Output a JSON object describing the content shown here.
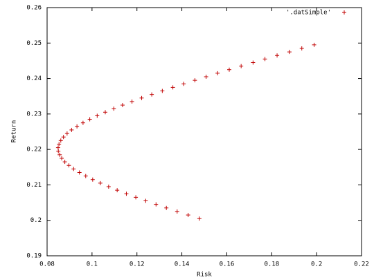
{
  "chart_data": {
    "type": "scatter",
    "x_label": "Risk",
    "y_label": "Return",
    "xlim": [
      0.08,
      0.22
    ],
    "xticks": [
      0.08,
      0.1,
      0.12,
      0.14,
      0.16,
      0.18,
      0.2,
      0.22
    ],
    "ylim": [
      0.19,
      0.26
    ],
    "yticks": [
      0.19,
      0.2,
      0.21,
      0.22,
      0.23,
      0.24,
      0.25,
      0.26
    ],
    "legend": "top-right",
    "x": [
      0.1478,
      0.1428,
      0.1379,
      0.1331,
      0.1285,
      0.1239,
      0.1195,
      0.1153,
      0.1112,
      0.1074,
      0.1037,
      0.1003,
      0.0972,
      0.0944,
      0.0918,
      0.0897,
      0.0879,
      0.0865,
      0.0856,
      0.085,
      0.0849,
      0.0853,
      0.0861,
      0.0873,
      0.0889,
      0.0909,
      0.0933,
      0.096,
      0.099,
      0.1023,
      0.1059,
      0.1097,
      0.1136,
      0.1178,
      0.1221,
      0.1266,
      0.1313,
      0.136,
      0.1408,
      0.1458,
      0.1508,
      0.1559,
      0.1611,
      0.1664,
      0.1717,
      0.177,
      0.1824,
      0.1879,
      0.1934,
      0.1989
    ],
    "series": [
      {
        "name": "'.datSimple'",
        "color": "#c00000",
        "values": [
          0.2005,
          0.2015,
          0.2025,
          0.2035,
          0.2045,
          0.2055,
          0.2065,
          0.2075,
          0.2085,
          0.2095,
          0.2105,
          0.2115,
          0.2125,
          0.2135,
          0.2145,
          0.2155,
          0.2165,
          0.2175,
          0.2185,
          0.2195,
          0.2205,
          0.2215,
          0.2225,
          0.2235,
          0.2245,
          0.2255,
          0.2265,
          0.2275,
          0.2285,
          0.2295,
          0.2305,
          0.2315,
          0.2325,
          0.2335,
          0.2345,
          0.2355,
          0.2365,
          0.2375,
          0.2385,
          0.2395,
          0.2405,
          0.2415,
          0.2425,
          0.2435,
          0.2445,
          0.2455,
          0.2465,
          0.2475,
          0.2485,
          0.2495
        ]
      }
    ]
  }
}
